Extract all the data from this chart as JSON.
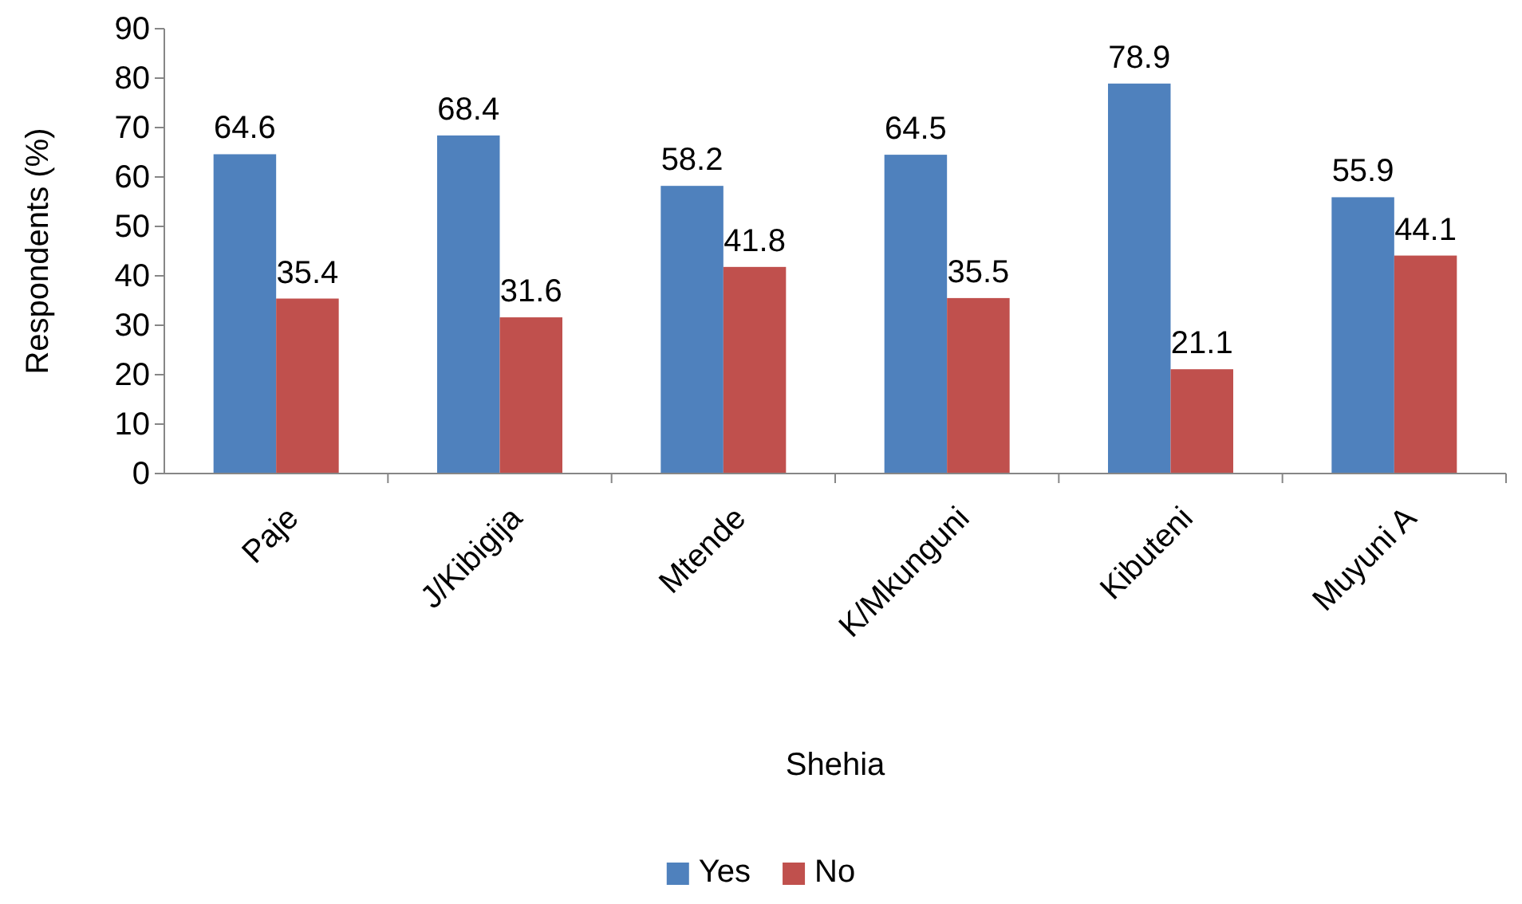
{
  "chart_data": {
    "type": "bar",
    "xlabel": "Shehia",
    "ylabel": "Respondents (%)",
    "categories": [
      "Paje",
      "J/Kibigija",
      "Mtende",
      "K/Mkunguni",
      "Kibuteni",
      "Muyuni A"
    ],
    "series": [
      {
        "name": "Yes",
        "color": "#4f81bd",
        "values": [
          64.6,
          68.4,
          58.2,
          64.5,
          78.9,
          55.9
        ]
      },
      {
        "name": "No",
        "color": "#c0504d",
        "values": [
          35.4,
          31.6,
          41.8,
          35.5,
          21.1,
          44.1
        ]
      }
    ],
    "ylim": [
      0,
      90
    ],
    "yticks": [
      0,
      10,
      20,
      30,
      40,
      50,
      60,
      70,
      80,
      90
    ],
    "data_labels": true,
    "legend": "bottom",
    "grid": false
  }
}
